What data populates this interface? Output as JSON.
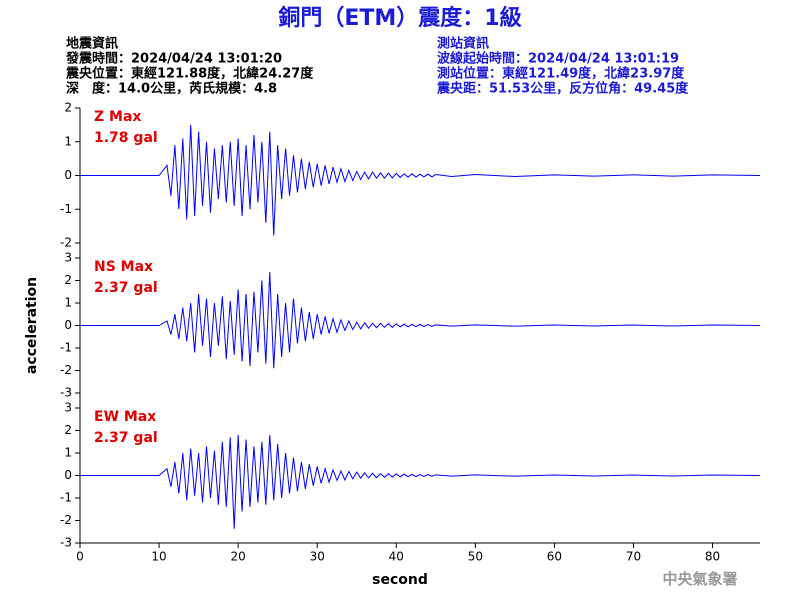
{
  "header": {
    "title": "銅門（ETM）震度：1級",
    "left_lines": [
      "地震資訊",
      "發震時間：2024/04/24 13:01:20",
      "震央位置：東經121.88度，北緯24.27度",
      "深　度：14.0公里，芮氏規模：4.8"
    ],
    "right_lines": [
      "測站資訊",
      "波線起始時間：2024/04/24 13:01:19",
      "測站位置：東經121.49度，北緯23.97度",
      "震央距：51.53公里，反方位角：49.45度"
    ],
    "watermark": "中央氣象署"
  },
  "chart_data": [
    {
      "type": "line",
      "annotations": [
        "Z Max",
        "1.78 gal"
      ],
      "color": "#0000ff",
      "xlim": [
        0,
        86
      ],
      "ylim": [
        -2,
        2
      ],
      "yticks": [
        -2,
        -1,
        0,
        1,
        2
      ],
      "x": [
        0,
        10,
        11,
        11.5,
        12,
        12.5,
        13,
        13.5,
        14,
        14.5,
        15,
        15.5,
        16,
        16.5,
        17,
        17.5,
        18,
        18.5,
        19,
        19.5,
        20,
        20.5,
        21,
        21.5,
        22,
        22.5,
        23,
        23.5,
        24,
        24.5,
        25,
        25.5,
        26,
        26.5,
        27,
        27.5,
        28,
        28.5,
        29,
        29.5,
        30,
        30.5,
        31,
        31.5,
        32,
        32.5,
        33,
        33.5,
        34,
        34.5,
        35,
        35.5,
        36,
        36.5,
        37,
        37.5,
        38,
        38.5,
        39,
        39.5,
        40,
        40.5,
        41,
        41.5,
        42,
        42.5,
        43,
        43.5,
        44,
        44.5,
        45,
        47,
        50,
        55,
        60,
        65,
        70,
        75,
        80,
        86
      ],
      "values": [
        0,
        0,
        0.3,
        -0.6,
        0.9,
        -1.0,
        1.1,
        -1.3,
        1.5,
        -1.2,
        1.3,
        -0.9,
        1.0,
        -1.1,
        0.8,
        -0.7,
        0.9,
        -0.8,
        1.0,
        -0.9,
        1.1,
        -1.2,
        0.9,
        -1.0,
        1.2,
        -0.8,
        1.0,
        -1.4,
        1.3,
        -1.78,
        0.9,
        -0.7,
        0.8,
        -0.6,
        0.6,
        -0.5,
        0.5,
        -0.4,
        0.4,
        -0.35,
        0.35,
        -0.3,
        0.3,
        -0.25,
        0.25,
        -0.2,
        0.2,
        -0.18,
        0.15,
        -0.15,
        0.12,
        -0.12,
        0.1,
        -0.1,
        0.1,
        -0.08,
        0.08,
        -0.08,
        0.07,
        -0.07,
        0.06,
        -0.06,
        0.05,
        -0.05,
        0.05,
        -0.05,
        0.04,
        -0.04,
        0.04,
        -0.04,
        0.03,
        -0.03,
        0.03,
        -0.03,
        0.02,
        -0.02,
        0.02,
        -0.02,
        0.02,
        0
      ]
    },
    {
      "type": "line",
      "annotations": [
        "NS Max",
        "2.37 gal"
      ],
      "color": "#0000ff",
      "ylabel": "acceleration",
      "xlim": [
        0,
        86
      ],
      "ylim": [
        -3,
        3
      ],
      "yticks": [
        -3,
        -2,
        -1,
        0,
        1,
        2,
        3
      ],
      "x": [
        0,
        10,
        11,
        11.5,
        12,
        12.5,
        13,
        13.5,
        14,
        14.5,
        15,
        15.5,
        16,
        16.5,
        17,
        17.5,
        18,
        18.5,
        19,
        19.5,
        20,
        20.5,
        21,
        21.5,
        22,
        22.5,
        23,
        23.5,
        24,
        24.5,
        25,
        25.5,
        26,
        26.5,
        27,
        27.5,
        28,
        28.5,
        29,
        29.5,
        30,
        30.5,
        31,
        31.5,
        32,
        32.5,
        33,
        33.5,
        34,
        34.5,
        35,
        35.5,
        36,
        36.5,
        37,
        37.5,
        38,
        38.5,
        39,
        39.5,
        40,
        40.5,
        41,
        41.5,
        42,
        42.5,
        43,
        43.5,
        44,
        44.5,
        45,
        47,
        50,
        55,
        60,
        65,
        70,
        75,
        80,
        86
      ],
      "values": [
        0,
        0,
        0.2,
        -0.4,
        0.5,
        -0.6,
        0.8,
        -0.7,
        1.0,
        -1.2,
        1.4,
        -0.9,
        1.2,
        -1.4,
        1.0,
        -0.9,
        1.3,
        -1.5,
        1.1,
        -1.3,
        1.6,
        -1.6,
        1.4,
        -1.8,
        1.5,
        -1.2,
        2.0,
        -1.7,
        2.37,
        -1.9,
        1.4,
        -1.4,
        1.0,
        -1.2,
        1.2,
        -0.8,
        0.8,
        -0.7,
        0.6,
        -0.6,
        0.5,
        -0.4,
        0.4,
        -0.35,
        0.3,
        -0.3,
        0.25,
        -0.22,
        0.2,
        -0.18,
        0.15,
        -0.15,
        0.12,
        -0.12,
        0.1,
        -0.1,
        0.1,
        -0.08,
        0.08,
        -0.08,
        0.07,
        -0.06,
        0.06,
        -0.06,
        0.05,
        -0.05,
        0.05,
        -0.04,
        0.04,
        -0.04,
        0.03,
        -0.03,
        0.03,
        -0.03,
        0.02,
        -0.02,
        0.02,
        -0.02,
        0.02,
        0
      ]
    },
    {
      "type": "line",
      "annotations": [
        "EW Max",
        "2.37 gal"
      ],
      "color": "#0000ff",
      "xlabel": "second",
      "xlim": [
        0,
        86
      ],
      "ylim": [
        -3,
        3
      ],
      "yticks": [
        -3,
        -2,
        -1,
        0,
        1,
        2,
        3
      ],
      "xticks": [
        0,
        10,
        20,
        30,
        40,
        50,
        60,
        70,
        80
      ],
      "x": [
        0,
        10,
        11,
        11.5,
        12,
        12.5,
        13,
        13.5,
        14,
        14.5,
        15,
        15.5,
        16,
        16.5,
        17,
        17.5,
        18,
        18.5,
        19,
        19.5,
        20,
        20.5,
        21,
        21.5,
        22,
        22.5,
        23,
        23.5,
        24,
        24.5,
        25,
        25.5,
        26,
        26.5,
        27,
        27.5,
        28,
        28.5,
        29,
        29.5,
        30,
        30.5,
        31,
        31.5,
        32,
        32.5,
        33,
        33.5,
        34,
        34.5,
        35,
        35.5,
        36,
        36.5,
        37,
        37.5,
        38,
        38.5,
        39,
        39.5,
        40,
        40.5,
        41,
        41.5,
        42,
        42.5,
        43,
        43.5,
        44,
        44.5,
        45,
        47,
        50,
        55,
        60,
        65,
        70,
        75,
        80,
        86
      ],
      "values": [
        0,
        0,
        0.3,
        -0.5,
        0.6,
        -0.8,
        1.0,
        -1.1,
        1.2,
        -0.9,
        1.0,
        -1.2,
        1.3,
        -1.0,
        1.1,
        -1.3,
        1.5,
        -1.4,
        1.7,
        -2.37,
        1.8,
        -1.6,
        1.6,
        -1.4,
        1.3,
        -1.2,
        1.5,
        -1.3,
        1.8,
        -1.1,
        1.4,
        -1.0,
        1.0,
        -0.8,
        0.8,
        -0.7,
        0.6,
        -0.6,
        0.5,
        -0.45,
        0.4,
        -0.35,
        0.3,
        -0.3,
        0.25,
        -0.22,
        0.2,
        -0.2,
        0.18,
        -0.15,
        0.15,
        -0.12,
        0.12,
        -0.1,
        0.1,
        -0.1,
        0.08,
        -0.08,
        0.08,
        -0.07,
        0.07,
        -0.06,
        0.06,
        -0.05,
        0.05,
        -0.05,
        0.04,
        -0.04,
        0.04,
        -0.03,
        0.03,
        -0.03,
        0.03,
        -0.03,
        0.02,
        -0.02,
        0.02,
        -0.02,
        0.02,
        0
      ]
    }
  ]
}
